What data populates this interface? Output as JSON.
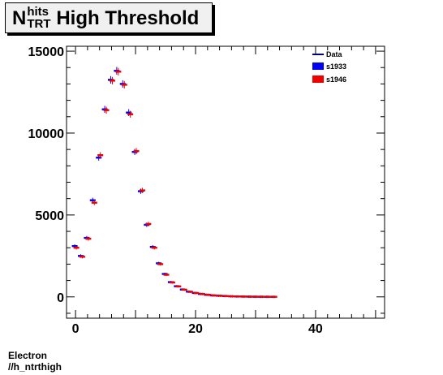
{
  "title": {
    "main": "N",
    "sup": "hits",
    "sub": "TRT",
    "rest": "High Threshold"
  },
  "footer": {
    "line1": "Electron",
    "line2": "//h_ntrthigh"
  },
  "chart_data": {
    "type": "histogram",
    "xlim": [
      -1.5,
      51.5
    ],
    "ylim": [
      -1300,
      15300
    ],
    "x_ticks": [
      0,
      20,
      40
    ],
    "y_ticks": [
      0,
      5000,
      10000,
      15000
    ],
    "grid": false,
    "legend_position": "top-right",
    "legend": [
      "Data",
      "s1933",
      "s1946"
    ],
    "series": [
      {
        "name": "s1933",
        "color": "#0000ee",
        "x": [
          0,
          1,
          2,
          3,
          4,
          5,
          6,
          7,
          8,
          9,
          10,
          11,
          12,
          13,
          14,
          15,
          16,
          17,
          18,
          19,
          20,
          21,
          22,
          23,
          24,
          25,
          26,
          27,
          28,
          29,
          30,
          31,
          32,
          33
        ],
        "values": [
          3100,
          2500,
          3600,
          5900,
          8500,
          11450,
          13250,
          13800,
          13000,
          11250,
          8850,
          6450,
          4400,
          3050,
          2050,
          1400,
          900,
          650,
          450,
          320,
          240,
          180,
          130,
          90,
          70,
          50,
          35,
          25,
          20,
          15,
          10,
          8,
          6,
          5
        ]
      },
      {
        "name": "s1946",
        "color": "#ee0000",
        "x": [
          0,
          1,
          2,
          3,
          4,
          5,
          6,
          7,
          8,
          9,
          10,
          11,
          12,
          13,
          14,
          15,
          16,
          17,
          18,
          19,
          20,
          21,
          22,
          23,
          24,
          25,
          26,
          27,
          28,
          29,
          30,
          31,
          32,
          33
        ],
        "values": [
          3000,
          2450,
          3550,
          5750,
          8650,
          11400,
          13200,
          13750,
          12950,
          11150,
          8900,
          6500,
          4450,
          3000,
          2000,
          1350,
          880,
          640,
          440,
          310,
          235,
          175,
          125,
          88,
          68,
          48,
          34,
          24,
          19,
          14,
          10,
          8,
          6,
          5
        ]
      }
    ]
  },
  "colors": {
    "data_line": "#000080",
    "s1933": "#0000ee",
    "s1946": "#ee0000",
    "title_bg": "#f0f0f0"
  }
}
